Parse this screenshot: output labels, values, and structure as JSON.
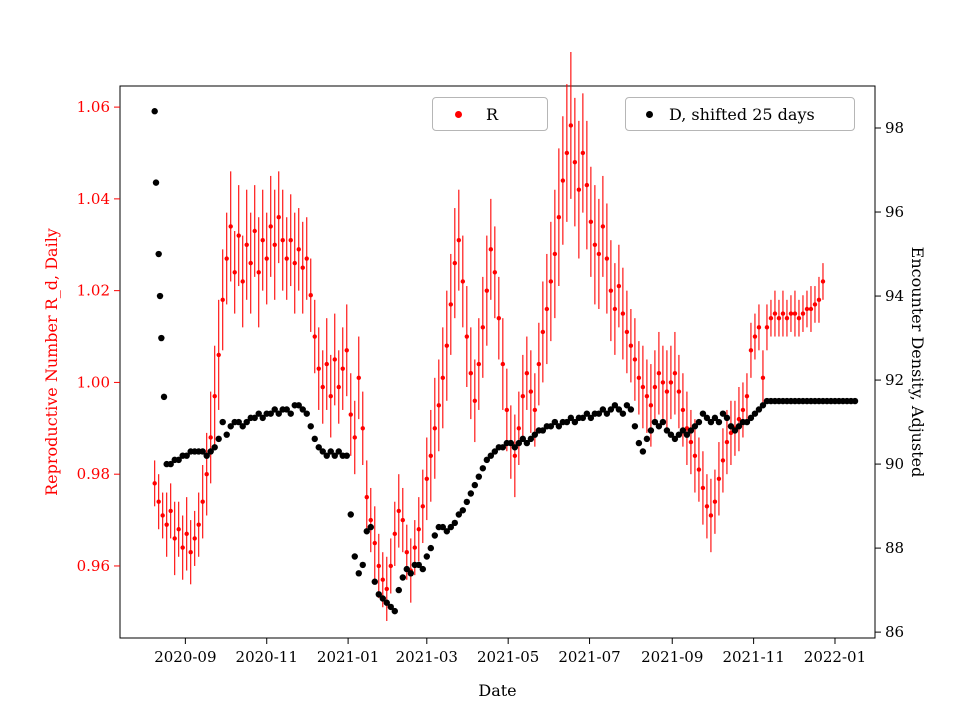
{
  "figure": {
    "background": "#ffffff"
  },
  "chart_data": {
    "type": "scatter",
    "title": "",
    "xlabel": "Date",
    "x_unit": "days since 2020-08-01",
    "x_domain": [
      -18,
      548
    ],
    "x_ticks": [
      {
        "day": 31,
        "label": "2020-09"
      },
      {
        "day": 92,
        "label": "2020-11"
      },
      {
        "day": 153,
        "label": "2021-01"
      },
      {
        "day": 212,
        "label": "2021-03"
      },
      {
        "day": 273,
        "label": "2021-05"
      },
      {
        "day": 334,
        "label": "2021-07"
      },
      {
        "day": 396,
        "label": "2021-09"
      },
      {
        "day": 457,
        "label": "2021-11"
      },
      {
        "day": 518,
        "label": "2022-01"
      }
    ],
    "left_axis": {
      "label": "Reproductive Number R_d, Daily",
      "color": "#ff0000",
      "lim": [
        0.9443,
        1.0646
      ],
      "ticks": [
        {
          "v": 0.96,
          "label": "0.96"
        },
        {
          "v": 0.98,
          "label": "0.98"
        },
        {
          "v": 1.0,
          "label": "1.00"
        },
        {
          "v": 1.02,
          "label": "1.02"
        },
        {
          "v": 1.04,
          "label": "1.04"
        },
        {
          "v": 1.06,
          "label": "1.06"
        }
      ]
    },
    "right_axis": {
      "label": "Encounter Density, Adjusted",
      "color": "#000000",
      "lim": [
        85.86,
        99.0
      ],
      "ticks": [
        {
          "v": 86,
          "label": "86"
        },
        {
          "v": 88,
          "label": "88"
        },
        {
          "v": 90,
          "label": "90"
        },
        {
          "v": 92,
          "label": "92"
        },
        {
          "v": 94,
          "label": "94"
        },
        {
          "v": 96,
          "label": "96"
        },
        {
          "v": 98,
          "label": "98"
        }
      ]
    },
    "legend_position": "upper center / upper right",
    "series": [
      {
        "name": "R",
        "axis": "left",
        "color": "#ff0000",
        "marker": "circle",
        "x": [
          8,
          11,
          14,
          17,
          20,
          23,
          26,
          29,
          32,
          35,
          38,
          41,
          44,
          47,
          50,
          53,
          56,
          59,
          62,
          65,
          68,
          71,
          74,
          77,
          80,
          83,
          86,
          89,
          92,
          95,
          98,
          101,
          104,
          107,
          110,
          113,
          116,
          119,
          122,
          125,
          128,
          131,
          134,
          137,
          140,
          143,
          146,
          149,
          152,
          155,
          158,
          161,
          164,
          167,
          170,
          173,
          176,
          179,
          182,
          185,
          188,
          191,
          194,
          197,
          200,
          203,
          206,
          209,
          212,
          215,
          218,
          221,
          224,
          227,
          230,
          233,
          236,
          239,
          242,
          245,
          248,
          251,
          254,
          257,
          260,
          263,
          266,
          269,
          272,
          275,
          278,
          281,
          284,
          287,
          290,
          293,
          296,
          299,
          302,
          305,
          308,
          311,
          314,
          317,
          320,
          323,
          326,
          329,
          332,
          335,
          338,
          341,
          344,
          347,
          350,
          353,
          356,
          359,
          362,
          365,
          368,
          371,
          374,
          377,
          380,
          383,
          386,
          389,
          392,
          395,
          398,
          401,
          404,
          407,
          410,
          413,
          416,
          419,
          422,
          425,
          428,
          431,
          434,
          437,
          440,
          443,
          446,
          449,
          452,
          455,
          458,
          461,
          464,
          467,
          470,
          473,
          476,
          479,
          482,
          485,
          488,
          491,
          494,
          497,
          500,
          503,
          506,
          509
        ],
        "y": [
          0.978,
          0.974,
          0.971,
          0.969,
          0.972,
          0.966,
          0.968,
          0.964,
          0.967,
          0.963,
          0.966,
          0.969,
          0.974,
          0.98,
          0.988,
          0.997,
          1.006,
          1.018,
          1.027,
          1.034,
          1.024,
          1.032,
          1.022,
          1.03,
          1.026,
          1.033,
          1.024,
          1.031,
          1.027,
          1.034,
          1.03,
          1.036,
          1.031,
          1.027,
          1.031,
          1.026,
          1.029,
          1.025,
          1.027,
          1.019,
          1.01,
          1.003,
          0.999,
          1.004,
          0.997,
          1.005,
          0.999,
          1.003,
          1.007,
          0.993,
          0.988,
          1.001,
          0.99,
          0.975,
          0.97,
          0.965,
          0.96,
          0.957,
          0.955,
          0.96,
          0.967,
          0.972,
          0.97,
          0.963,
          0.959,
          0.964,
          0.968,
          0.973,
          0.979,
          0.984,
          0.99,
          0.995,
          1.001,
          1.008,
          1.017,
          1.026,
          1.031,
          1.022,
          1.01,
          1.002,
          0.996,
          1.004,
          1.012,
          1.02,
          1.029,
          1.024,
          1.014,
          1.004,
          0.994,
          0.987,
          0.984,
          0.99,
          0.997,
          1.002,
          0.998,
          0.994,
          1.004,
          1.011,
          1.016,
          1.022,
          1.028,
          1.036,
          1.044,
          1.05,
          1.056,
          1.048,
          1.042,
          1.05,
          1.043,
          1.035,
          1.03,
          1.028,
          1.034,
          1.027,
          1.02,
          1.016,
          1.021,
          1.015,
          1.011,
          1.008,
          1.005,
          1.001,
          0.999,
          0.997,
          0.995,
          0.999,
          1.002,
          1.0,
          0.998,
          1.0,
          1.002,
          0.998,
          0.994,
          0.99,
          0.987,
          0.984,
          0.981,
          0.977,
          0.973,
          0.971,
          0.974,
          0.979,
          0.983,
          0.987,
          0.989,
          0.99,
          0.992,
          0.994,
          0.997,
          1.007,
          1.01,
          1.012,
          1.001,
          1.012,
          1.014,
          1.015,
          1.014,
          1.015,
          1.014,
          1.015,
          1.015,
          1.014,
          1.015,
          1.016,
          1.016,
          1.017,
          1.018,
          1.022
        ],
        "yerr": [
          0.005,
          0.006,
          0.005,
          0.007,
          0.006,
          0.008,
          0.006,
          0.007,
          0.008,
          0.007,
          0.006,
          0.007,
          0.008,
          0.009,
          0.01,
          0.011,
          0.012,
          0.011,
          0.01,
          0.012,
          0.009,
          0.011,
          0.01,
          0.012,
          0.011,
          0.01,
          0.012,
          0.011,
          0.01,
          0.011,
          0.012,
          0.01,
          0.011,
          0.009,
          0.01,
          0.011,
          0.009,
          0.01,
          0.009,
          0.008,
          0.008,
          0.009,
          0.008,
          0.01,
          0.009,
          0.01,
          0.008,
          0.009,
          0.01,
          0.009,
          0.008,
          0.009,
          0.008,
          0.008,
          0.007,
          0.008,
          0.007,
          0.006,
          0.007,
          0.006,
          0.007,
          0.008,
          0.007,
          0.006,
          0.007,
          0.006,
          0.007,
          0.008,
          0.009,
          0.01,
          0.011,
          0.01,
          0.011,
          0.012,
          0.011,
          0.012,
          0.011,
          0.01,
          0.011,
          0.01,
          0.009,
          0.01,
          0.011,
          0.012,
          0.011,
          0.01,
          0.009,
          0.01,
          0.009,
          0.008,
          0.009,
          0.008,
          0.009,
          0.008,
          0.009,
          0.008,
          0.009,
          0.011,
          0.012,
          0.013,
          0.014,
          0.015,
          0.014,
          0.015,
          0.016,
          0.014,
          0.015,
          0.013,
          0.014,
          0.012,
          0.013,
          0.012,
          0.011,
          0.012,
          0.011,
          0.01,
          0.009,
          0.01,
          0.009,
          0.008,
          0.009,
          0.008,
          0.009,
          0.008,
          0.009,
          0.008,
          0.009,
          0.008,
          0.009,
          0.008,
          0.009,
          0.008,
          0.008,
          0.008,
          0.007,
          0.008,
          0.007,
          0.008,
          0.007,
          0.008,
          0.007,
          0.008,
          0.007,
          0.007,
          0.007,
          0.006,
          0.007,
          0.006,
          0.005,
          0.006,
          0.005,
          0.005,
          0.006,
          0.005,
          0.004,
          0.005,
          0.004,
          0.005,
          0.004,
          0.004,
          0.005,
          0.004,
          0.004,
          0.004,
          0.005,
          0.004,
          0.005,
          0.004
        ]
      },
      {
        "name": "D, shifted 25 days",
        "axis": "right",
        "color": "#000000",
        "marker": "circle",
        "x": [
          8,
          9,
          11,
          12,
          13,
          15,
          17,
          20,
          23,
          26,
          29,
          32,
          35,
          38,
          41,
          44,
          47,
          50,
          53,
          56,
          59,
          62,
          65,
          68,
          71,
          74,
          77,
          80,
          83,
          86,
          89,
          92,
          95,
          98,
          101,
          104,
          107,
          110,
          113,
          116,
          119,
          122,
          125,
          128,
          131,
          134,
          137,
          140,
          143,
          146,
          149,
          152,
          155,
          158,
          161,
          164,
          167,
          170,
          173,
          176,
          179,
          182,
          185,
          188,
          191,
          194,
          197,
          200,
          203,
          206,
          209,
          212,
          215,
          218,
          221,
          224,
          227,
          230,
          233,
          236,
          239,
          242,
          245,
          248,
          251,
          254,
          257,
          260,
          263,
          266,
          269,
          272,
          275,
          278,
          281,
          284,
          287,
          290,
          293,
          296,
          299,
          302,
          305,
          308,
          311,
          314,
          317,
          320,
          323,
          326,
          329,
          332,
          335,
          338,
          341,
          344,
          347,
          350,
          353,
          356,
          359,
          362,
          365,
          368,
          371,
          374,
          377,
          380,
          383,
          386,
          389,
          392,
          395,
          398,
          401,
          404,
          407,
          410,
          413,
          416,
          419,
          422,
          425,
          428,
          431,
          434,
          437,
          440,
          443,
          446,
          449,
          452,
          455,
          458,
          461,
          464,
          467,
          470,
          473,
          476,
          479,
          482,
          485,
          488,
          491,
          494,
          497,
          500,
          503,
          506,
          509,
          512,
          515,
          518,
          521,
          524,
          527,
          530,
          533
        ],
        "y": [
          98.4,
          96.7,
          95.0,
          94.0,
          93.0,
          91.6,
          90.0,
          90.0,
          90.1,
          90.1,
          90.2,
          90.2,
          90.3,
          90.3,
          90.3,
          90.3,
          90.2,
          90.3,
          90.4,
          90.6,
          91.0,
          90.7,
          90.9,
          91.0,
          91.0,
          90.9,
          91.0,
          91.1,
          91.1,
          91.2,
          91.1,
          91.2,
          91.2,
          91.3,
          91.2,
          91.3,
          91.3,
          91.2,
          91.4,
          91.4,
          91.3,
          91.2,
          90.9,
          90.6,
          90.4,
          90.3,
          90.2,
          90.3,
          90.2,
          90.3,
          90.2,
          90.2,
          88.8,
          87.8,
          87.4,
          87.6,
          88.4,
          88.5,
          87.2,
          86.9,
          86.8,
          86.7,
          86.6,
          86.5,
          87.0,
          87.3,
          87.5,
          87.4,
          87.6,
          87.6,
          87.5,
          87.8,
          88.0,
          88.3,
          88.5,
          88.5,
          88.4,
          88.5,
          88.6,
          88.8,
          88.9,
          89.1,
          89.3,
          89.5,
          89.7,
          89.9,
          90.1,
          90.2,
          90.3,
          90.4,
          90.4,
          90.5,
          90.5,
          90.4,
          90.5,
          90.6,
          90.5,
          90.6,
          90.7,
          90.8,
          90.8,
          90.9,
          90.9,
          91.0,
          90.9,
          91.0,
          91.0,
          91.1,
          91.0,
          91.1,
          91.1,
          91.2,
          91.1,
          91.2,
          91.2,
          91.3,
          91.2,
          91.3,
          91.4,
          91.3,
          91.2,
          91.4,
          91.3,
          90.9,
          90.5,
          90.3,
          90.6,
          90.8,
          91.0,
          90.9,
          91.0,
          90.8,
          90.7,
          90.6,
          90.7,
          90.8,
          90.7,
          90.8,
          90.9,
          91.0,
          91.2,
          91.1,
          91.0,
          91.1,
          91.0,
          91.2,
          91.1,
          90.9,
          90.8,
          90.9,
          91.0,
          91.0,
          91.1,
          91.2,
          91.3,
          91.4,
          91.5,
          91.5,
          91.5,
          91.5,
          91.5,
          91.5,
          91.5,
          91.5,
          91.5,
          91.5,
          91.5,
          91.5,
          91.5,
          91.5,
          91.5,
          91.5,
          91.5,
          91.5,
          91.5,
          91.5,
          91.5,
          91.5,
          91.5
        ]
      }
    ]
  }
}
